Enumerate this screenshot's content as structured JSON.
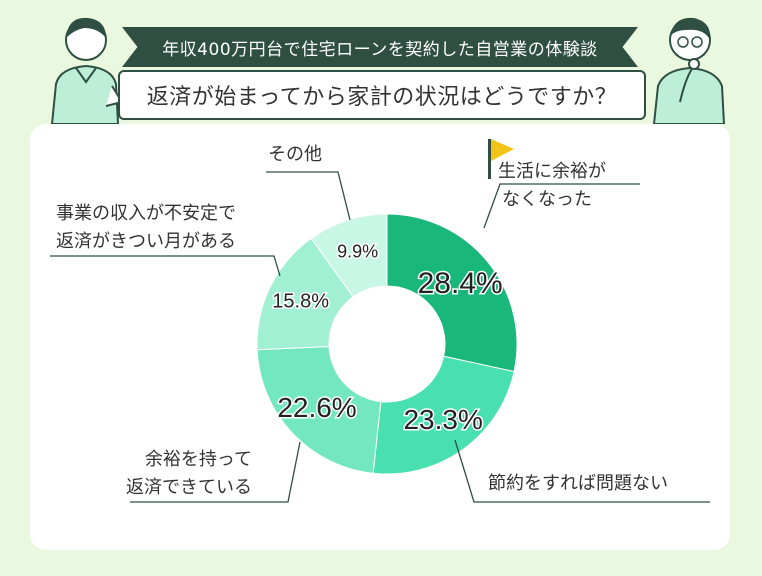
{
  "header": {
    "banner_text": "年収400万円台で住宅ローンを契約した自営業の体験談",
    "question_text": "返済が始まってから家計の状況はどうですか？"
  },
  "colors": {
    "background": "#eaf8df",
    "banner": "#2f4f43",
    "flag": "#f3c317",
    "slice_1": "#19b87a",
    "slice_2": "#47e0ae",
    "slice_3": "#73e7bf",
    "slice_4": "#a2f0d3",
    "slice_5": "#c8f7e6"
  },
  "chart_data": {
    "type": "pie",
    "variant": "donut",
    "title": "",
    "categories": [
      "生活に余裕がなくなった",
      "節約をすれば問題ない",
      "余裕を持って返済できている",
      "事業の収入が不安定で返済がきつい月がある",
      "その他"
    ],
    "values": [
      28.4,
      23.3,
      22.6,
      15.8,
      9.9
    ],
    "value_labels": [
      "28.4%",
      "23.3%",
      "22.6%",
      "15.8%",
      "9.9%"
    ],
    "legend": "none"
  },
  "labels": {
    "slice1_line1": "生活に余裕が",
    "slice1_line2": "なくなった",
    "slice2": "節約をすれば問題ない",
    "slice3_line1": "余裕を持って",
    "slice3_line2": "返済できている",
    "slice4_line1": "事業の収入が不安定で",
    "slice4_line2": "返済がきつい月がある",
    "slice5": "その他"
  },
  "icons": [
    "flag-icon",
    "person-left-illustration",
    "person-right-illustration"
  ]
}
